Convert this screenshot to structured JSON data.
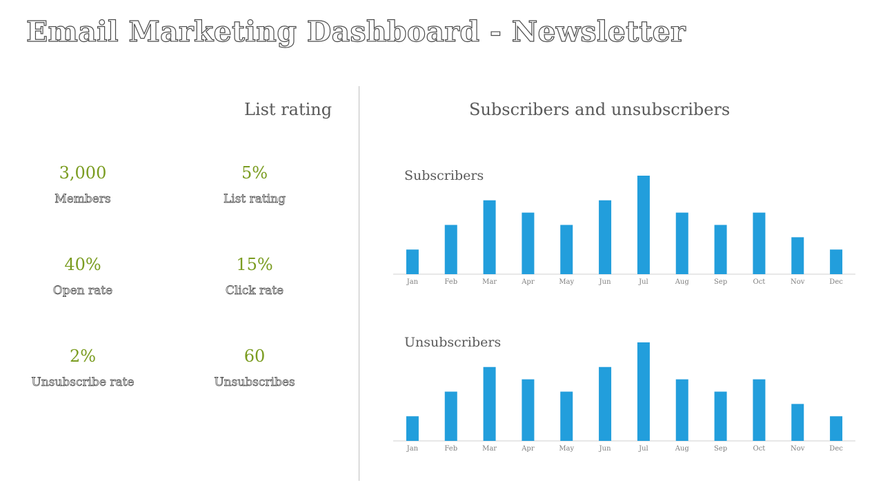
{
  "header": {
    "title": "Email Marketing Dashboard - Newsletter"
  },
  "left": {
    "title": "List rating",
    "kpis": [
      {
        "value": "3,000",
        "label": "Members"
      },
      {
        "value": "5%",
        "label": "List rating"
      },
      {
        "value": "40%",
        "label": "Open rate"
      },
      {
        "value": "15%",
        "label": "Click rate"
      },
      {
        "value": "2%",
        "label": "Unsubscribe rate"
      },
      {
        "value": "60",
        "label": "Unsubscribes"
      }
    ]
  },
  "right": {
    "title": "Subscribers and unsubscribers"
  },
  "colors": {
    "bar": "#229edc",
    "kpi_value": "#7a9c20",
    "axis": "#d0d0d0"
  },
  "chart_data": [
    {
      "type": "bar",
      "title": "Subscribers",
      "categories": [
        "Jan",
        "Feb",
        "Mar",
        "Apr",
        "May",
        "Jun",
        "Jul",
        "Aug",
        "Sep",
        "Oct",
        "Nov",
        "Dec"
      ],
      "values": [
        2,
        4,
        6,
        5,
        4,
        6,
        8,
        5,
        4,
        5,
        3,
        2
      ],
      "ylim": [
        0,
        8
      ]
    },
    {
      "type": "bar",
      "title": "Unsubscribers",
      "categories": [
        "Jan",
        "Feb",
        "Mar",
        "Apr",
        "May",
        "Jun",
        "Jul",
        "Aug",
        "Sep",
        "Oct",
        "Nov",
        "Dec"
      ],
      "values": [
        2,
        4,
        6,
        5,
        4,
        6,
        8,
        5,
        4,
        5,
        3,
        2
      ],
      "ylim": [
        0,
        8
      ]
    }
  ]
}
